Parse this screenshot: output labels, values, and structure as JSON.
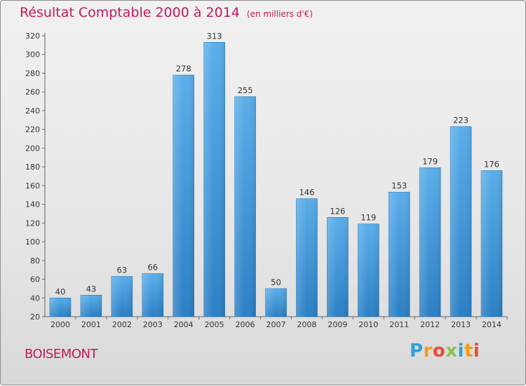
{
  "header": {
    "title": "Résultat Comptable 2000 à 2014",
    "subtitle": "(en milliers d'€)"
  },
  "footer": {
    "town": "BOISEMONT",
    "logo_letters": [
      "P",
      "r",
      "o",
      "x",
      "i",
      "t",
      "i"
    ],
    "logo_colors": [
      "#2e9fd9",
      "#f39c12",
      "#e74c3c",
      "#8bc34a",
      "#2e9fd9",
      "#f39c12",
      "#e74c3c"
    ]
  },
  "colors": {
    "title": "#c2185b",
    "bar_top": "#5aaeea",
    "bar_bottom": "#2a7fc4",
    "axis": "#666666",
    "text": "#333333"
  },
  "chart_data": {
    "type": "bar",
    "title": "Résultat Comptable 2000 à 2014",
    "subtitle": "(en milliers d'€)",
    "xlabel": "",
    "ylabel": "",
    "categories": [
      "2000",
      "2001",
      "2002",
      "2003",
      "2004",
      "2005",
      "2006",
      "2007",
      "2008",
      "2009",
      "2010",
      "2011",
      "2012",
      "2013",
      "2014"
    ],
    "values": [
      40,
      43,
      63,
      66,
      278,
      313,
      255,
      50,
      146,
      126,
      119,
      153,
      179,
      223,
      176
    ],
    "value_labels": [
      "40",
      "43",
      "63",
      "66",
      "278",
      "313",
      "255",
      "50",
      "146",
      "126",
      "119",
      "153",
      "179",
      "223",
      "176"
    ],
    "ylim": [
      20,
      320
    ],
    "yticks": [
      20,
      40,
      60,
      80,
      100,
      120,
      140,
      160,
      180,
      200,
      220,
      240,
      260,
      280,
      300,
      320
    ],
    "ytick_labels": [
      "20",
      "40",
      "60",
      "80",
      "100",
      "120",
      "140",
      "160",
      "180",
      "200",
      "220",
      "240",
      "260",
      "280",
      "300",
      "320"
    ],
    "grid": false,
    "legend": "none"
  }
}
